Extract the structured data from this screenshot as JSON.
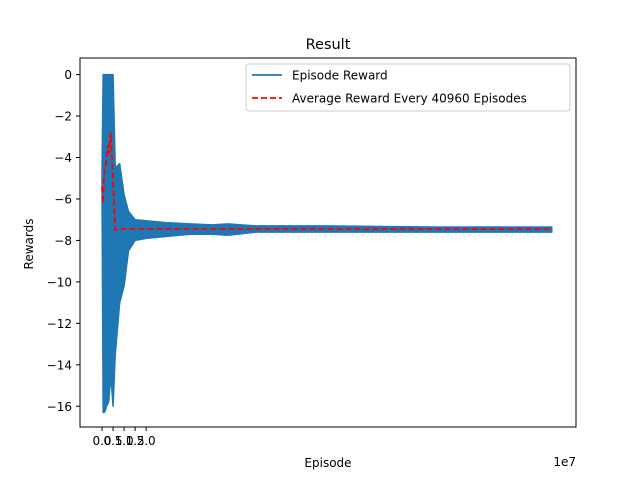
{
  "chart_data": {
    "type": "line",
    "title": "Result",
    "xlabel": "Episode",
    "ylabel": "Rewards",
    "x_multiplier_label": "1e7",
    "xlim": [
      -1.0,
      21.5
    ],
    "ylim": [
      -17.0,
      0.8
    ],
    "x_ticks": [
      0.0,
      0.5,
      1.0,
      1.5,
      2.0
    ],
    "x_tick_labels": [
      "0.0",
      "0.5",
      "1.0",
      "1.5",
      "2.0"
    ],
    "y_ticks": [
      0,
      -2,
      -4,
      -6,
      -8,
      -10,
      -12,
      -14,
      -16
    ],
    "y_tick_labels": [
      "0",
      "−2",
      "−4",
      "−6",
      "−8",
      "−10",
      "−12",
      "−14",
      "−16"
    ],
    "legend_position": "top-right",
    "series": [
      {
        "name": "Episode Reward",
        "color": "#1f77b4",
        "style": "solid",
        "envelope": {
          "x": [
            0.0,
            0.05,
            0.1,
            0.15,
            0.2,
            0.3,
            0.4,
            0.5,
            0.6,
            0.8,
            1.0,
            1.2,
            1.5,
            2.0,
            3.0,
            4.0,
            5.0,
            5.7,
            7.0,
            10.0,
            15.0,
            20.4
          ],
          "upper": [
            -4.5,
            0.0,
            0.0,
            0.0,
            0.0,
            0.0,
            0.0,
            0.0,
            -4.5,
            -4.3,
            -5.8,
            -6.6,
            -7.0,
            -7.05,
            -7.15,
            -7.2,
            -7.25,
            -7.2,
            -7.3,
            -7.3,
            -7.35,
            -7.35
          ],
          "lower": [
            -6.0,
            -16.3,
            -16.3,
            -16.2,
            -16.0,
            -15.8,
            -14.5,
            -16.0,
            -13.5,
            -11.0,
            -10.2,
            -8.5,
            -8.0,
            -7.9,
            -7.8,
            -7.7,
            -7.7,
            -7.75,
            -7.6,
            -7.6,
            -7.6,
            -7.6
          ]
        }
      },
      {
        "name": "Average Reward Every 40960 Episodes",
        "color": "#ff0000",
        "style": "dashed",
        "x": [
          0.0,
          0.04,
          0.08,
          0.12,
          0.16,
          0.2,
          0.24,
          0.28,
          0.32,
          0.36,
          0.4,
          0.45,
          0.6,
          1.0,
          2.0,
          5.0,
          10.0,
          15.0,
          20.4
        ],
        "y": [
          -5.4,
          -6.2,
          -5.1,
          -4.6,
          -4.4,
          -4.1,
          -3.6,
          -3.4,
          -3.8,
          -3.0,
          -2.8,
          -4.0,
          -7.5,
          -7.45,
          -7.45,
          -7.45,
          -7.45,
          -7.45,
          -7.45
        ]
      }
    ]
  }
}
